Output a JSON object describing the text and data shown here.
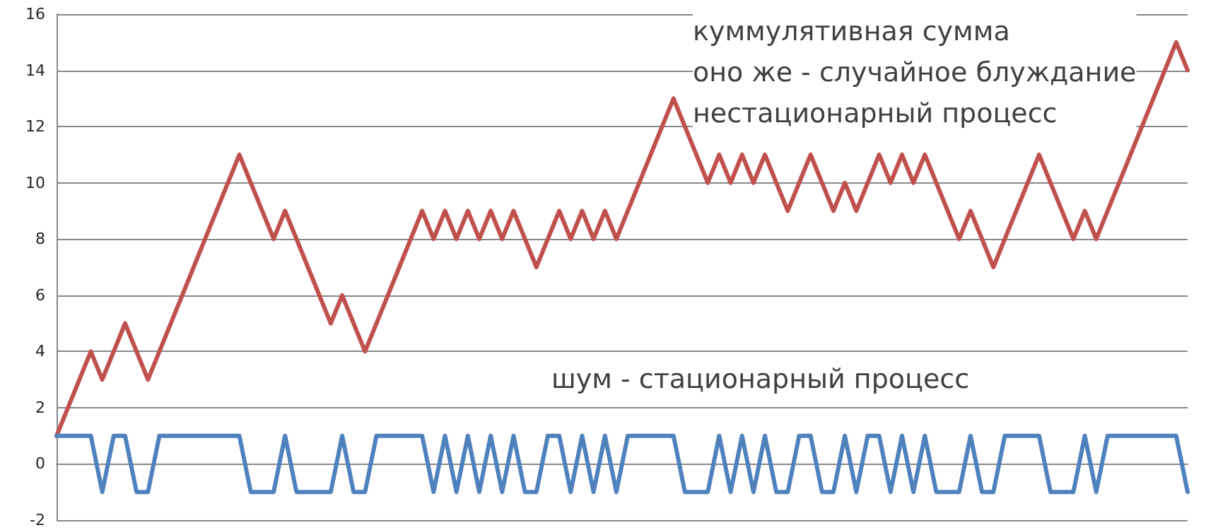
{
  "chart_data": {
    "type": "line",
    "categories": [
      null,
      null,
      null,
      null,
      null,
      null,
      null,
      null,
      null,
      null,
      null,
      null,
      null,
      null,
      null,
      null,
      null,
      null,
      null,
      null,
      null,
      null,
      null,
      null,
      null,
      null,
      null,
      null,
      null,
      null,
      null,
      null,
      null,
      null,
      null,
      null,
      null,
      null,
      null,
      null,
      null,
      null,
      null,
      null,
      null,
      null,
      null,
      null,
      null,
      null,
      null,
      null,
      null,
      null,
      null,
      null,
      null,
      null,
      null,
      null,
      null,
      null,
      null,
      null,
      null,
      null,
      null,
      null,
      null,
      null,
      null,
      null,
      null,
      null,
      null,
      null,
      null,
      null,
      null,
      null,
      null,
      null,
      null,
      null,
      null,
      null,
      null,
      null,
      null,
      null,
      null,
      null,
      null,
      null,
      null,
      null,
      null,
      null,
      null,
      null
    ],
    "series": [
      {
        "color": "#c0504d",
        "values": [
          1,
          2,
          3,
          4,
          3,
          4,
          5,
          4,
          3,
          4,
          5,
          6,
          7,
          8,
          9,
          10,
          11,
          10,
          9,
          8,
          9,
          8,
          7,
          6,
          5,
          6,
          5,
          4,
          5,
          6,
          7,
          8,
          9,
          8,
          9,
          8,
          9,
          8,
          9,
          8,
          9,
          8,
          7,
          8,
          9,
          8,
          9,
          8,
          9,
          8,
          9,
          10,
          11,
          12,
          13,
          12,
          11,
          10,
          11,
          10,
          11,
          10,
          11,
          10,
          9,
          10,
          11,
          10,
          9,
          10,
          9,
          10,
          11,
          10,
          11,
          10,
          11,
          10,
          9,
          8,
          9,
          8,
          7,
          8,
          9,
          10,
          11,
          10,
          9,
          8,
          9,
          8,
          9,
          10,
          11,
          12,
          13,
          14,
          15,
          14
        ]
      },
      {
        "color": "#4f81bd",
        "values": [
          1,
          1,
          1,
          1,
          -1,
          1,
          1,
          -1,
          -1,
          1,
          1,
          1,
          1,
          1,
          1,
          1,
          1,
          -1,
          -1,
          -1,
          1,
          -1,
          -1,
          -1,
          -1,
          1,
          -1,
          -1,
          1,
          1,
          1,
          1,
          1,
          -1,
          1,
          -1,
          1,
          -1,
          1,
          -1,
          1,
          -1,
          -1,
          1,
          1,
          -1,
          1,
          -1,
          1,
          -1,
          1,
          1,
          1,
          1,
          1,
          -1,
          -1,
          -1,
          1,
          -1,
          1,
          -1,
          1,
          -1,
          -1,
          1,
          1,
          -1,
          -1,
          1,
          -1,
          1,
          1,
          -1,
          1,
          -1,
          1,
          -1,
          -1,
          -1,
          1,
          -1,
          -1,
          1,
          1,
          1,
          1,
          -1,
          -1,
          -1,
          1,
          -1,
          1,
          1,
          1,
          1,
          1,
          1,
          1,
          -1
        ]
      }
    ],
    "ylim": [
      -2,
      16
    ],
    "yticks": [
      -2,
      0,
      2,
      4,
      6,
      8,
      10,
      12,
      14,
      16
    ],
    "grid": "y",
    "line_style": "solid",
    "annotations": [
      "куммулятивная сумма\nоно же - случайное блуждание\nнестационарный процесс",
      "шум - стационарный процесс"
    ]
  }
}
